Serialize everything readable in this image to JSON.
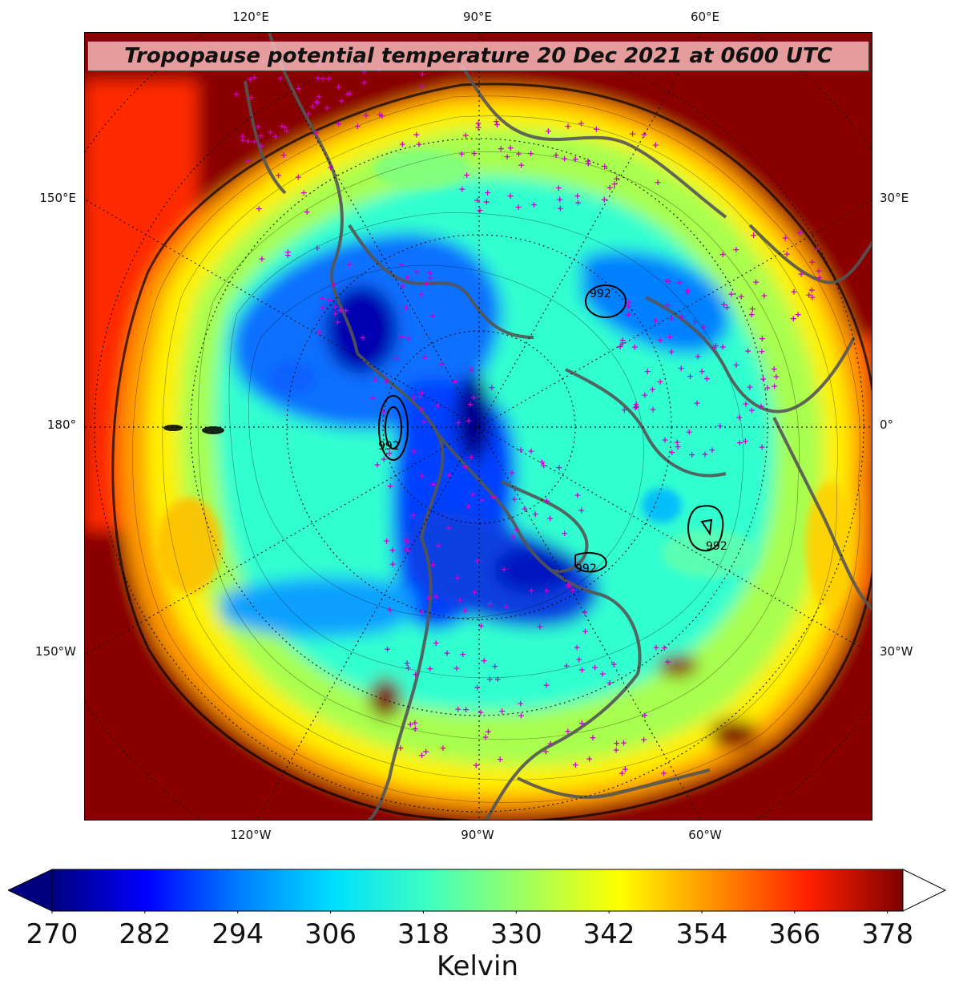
{
  "title": "Tropopause potential temperature 20 Dec 2021 at 0600 UTC",
  "top_lon_labels": [
    "120°E",
    "90°E",
    "60°E"
  ],
  "bottom_lon_labels": [
    "120°W",
    "90°W",
    "60°W"
  ],
  "left_lat_labels": [
    "150°E",
    "180°",
    "150°W"
  ],
  "right_lat_labels": [
    "30°E",
    "0°",
    "30°W"
  ],
  "contour_labels": [
    "992",
    "992",
    "992",
    "992"
  ],
  "colorbar": {
    "label": "Kelvin",
    "min": 270,
    "max": 380,
    "ticks": [
      "270",
      "282",
      "294",
      "306",
      "318",
      "330",
      "342",
      "354",
      "366",
      "378"
    ],
    "colormap": "jet",
    "extend": "both",
    "colors": [
      "#00007f",
      "#0000ff",
      "#0080ff",
      "#00e0ff",
      "#40ffc0",
      "#a0ff60",
      "#ffff00",
      "#ff9000",
      "#ff2000",
      "#7f0000"
    ]
  },
  "colors": {
    "station_marker": "#cc00cc",
    "coastline": "#505050",
    "gridline": "#000000"
  }
}
